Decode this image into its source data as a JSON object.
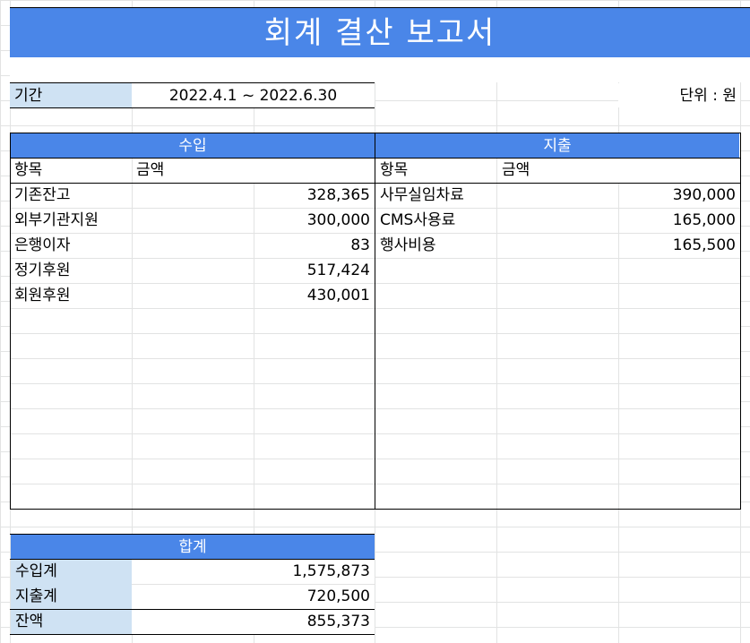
{
  "title": "회계 결산 보고서",
  "period": {
    "label": "기간",
    "value": "2022.4.1 ~ 2022.6.30"
  },
  "unit": "단위 : 원",
  "income": {
    "header": "수입",
    "col_item": "항목",
    "col_amount": "금액",
    "rows": [
      {
        "item": "기존잔고",
        "amount": "328,365"
      },
      {
        "item": "외부기관지원",
        "amount": "300,000"
      },
      {
        "item": "은행이자",
        "amount": "83"
      },
      {
        "item": "정기후원",
        "amount": "517,424"
      },
      {
        "item": "회원후원",
        "amount": "430,001"
      }
    ]
  },
  "expense": {
    "header": "지출",
    "col_item": "항목",
    "col_amount": "금액",
    "rows": [
      {
        "item": "사무실임차료",
        "amount": "390,000"
      },
      {
        "item": "CMS사용료",
        "amount": "165,000"
      },
      {
        "item": "행사비용",
        "amount": "165,500"
      }
    ]
  },
  "total": {
    "header": "합계",
    "rows": [
      {
        "label": "수입계",
        "amount": "1,575,873"
      },
      {
        "label": "지출계",
        "amount": "720,500"
      },
      {
        "label": "잔액",
        "amount": "855,373"
      }
    ]
  },
  "colors": {
    "header_blue": "#4a86e8",
    "label_blue": "#cfe2f3",
    "grid": "#e2e3e3"
  }
}
